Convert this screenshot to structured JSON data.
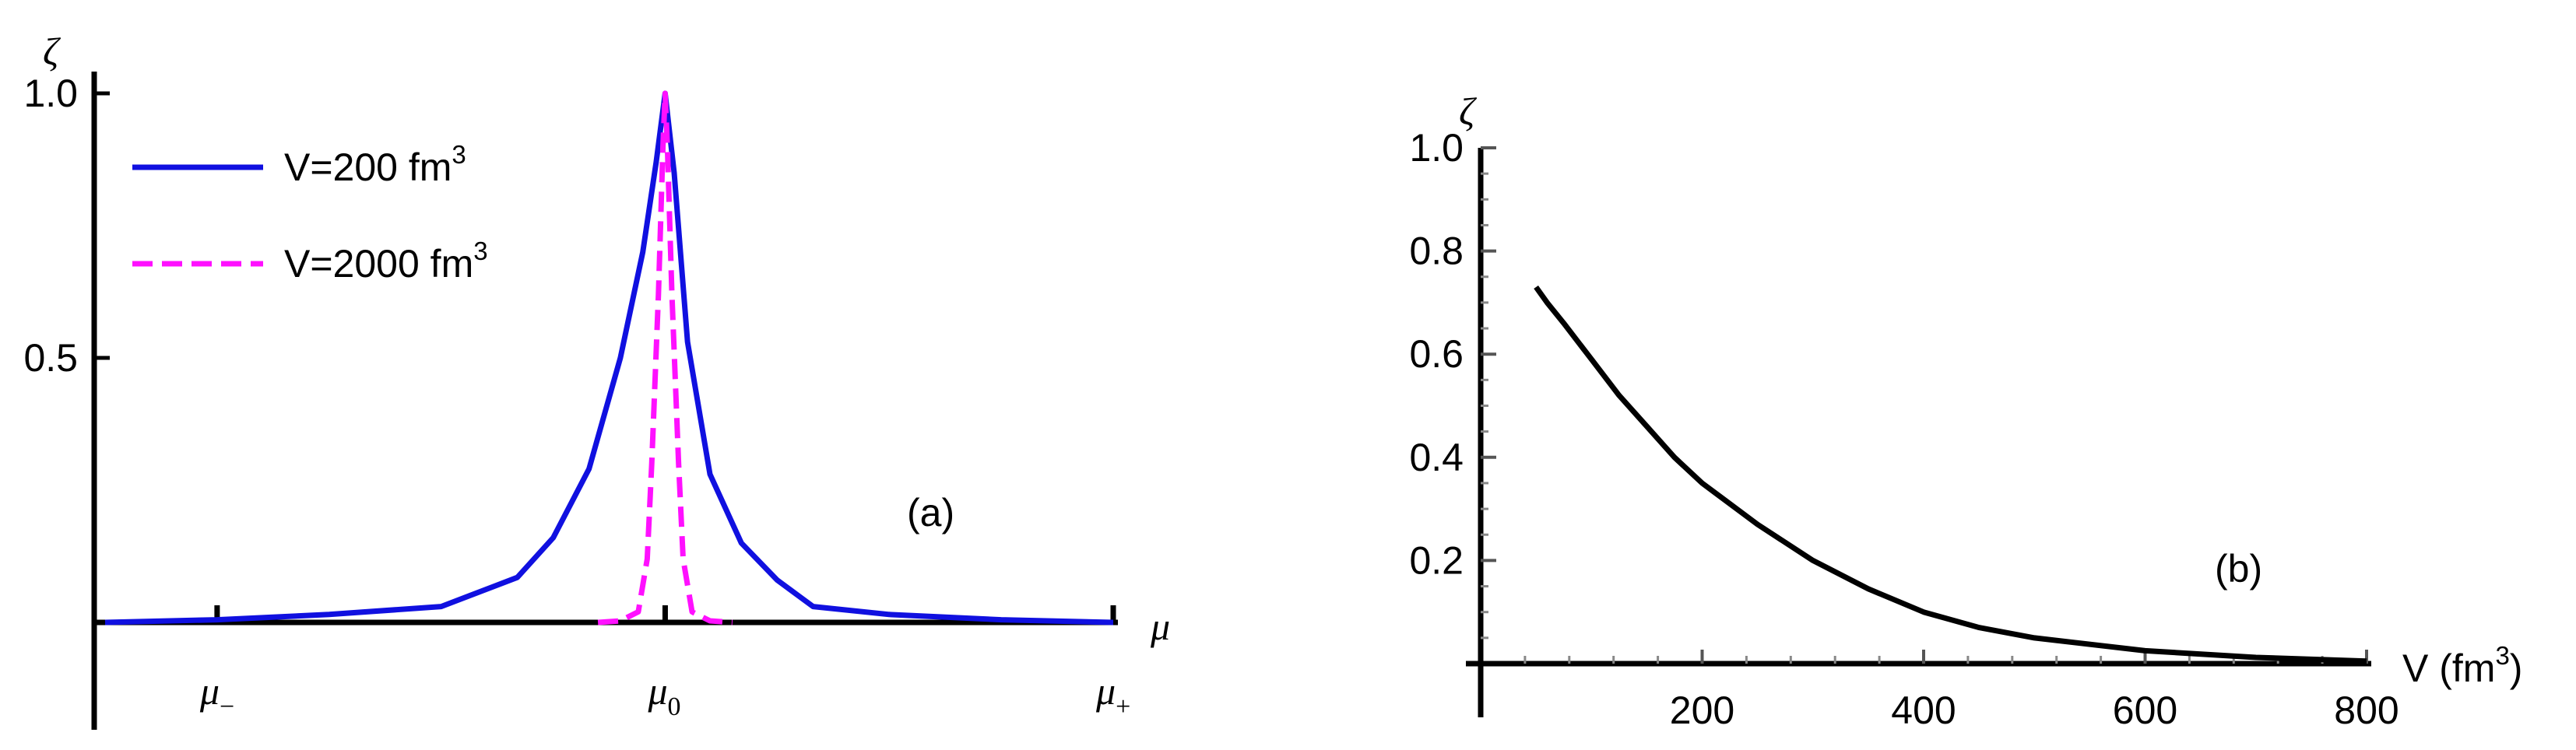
{
  "chart_data": [
    {
      "type": "line",
      "panel_label": "(a)",
      "xlabel": "μ",
      "ylabel": "ζ",
      "x_ticks": [
        {
          "label": "μ",
          "sub": "−",
          "x": -1
        },
        {
          "label": "μ",
          "sub": "0",
          "x": 0
        },
        {
          "label": "μ",
          "sub": "+",
          "x": 1
        }
      ],
      "y_ticks": [
        {
          "label": "0.5",
          "y": 0.5
        },
        {
          "label": "1.0",
          "y": 1.0
        }
      ],
      "xlim": [
        -1.25,
        1.0
      ],
      "ylim": [
        0,
        1.0
      ],
      "legend_position": "top-left",
      "series": [
        {
          "name": "V=200 fm",
          "name_sup": "3",
          "color": "#1010e0",
          "dash": "solid",
          "x": [
            -1.25,
            -1.0,
            -0.75,
            -0.5,
            -0.33,
            -0.25,
            -0.17,
            -0.1,
            -0.05,
            -0.02,
            0.0,
            0.02,
            0.05,
            0.1,
            0.17,
            0.25,
            0.33,
            0.5,
            0.75,
            1.0
          ],
          "y": [
            0.0,
            0.005,
            0.015,
            0.03,
            0.085,
            0.16,
            0.29,
            0.5,
            0.7,
            0.87,
            1.0,
            0.85,
            0.53,
            0.28,
            0.15,
            0.08,
            0.03,
            0.015,
            0.005,
            0.0
          ]
        },
        {
          "name": "V=2000 fm",
          "name_sup": "3",
          "color": "#ff10ff",
          "dash": "dashed",
          "x": [
            -0.15,
            -0.1,
            -0.06,
            -0.04,
            -0.03,
            -0.015,
            -0.005,
            0.0,
            0.005,
            0.015,
            0.03,
            0.04,
            0.06,
            0.1,
            0.15
          ],
          "y": [
            0.0,
            0.003,
            0.02,
            0.12,
            0.3,
            0.62,
            0.9,
            1.0,
            0.9,
            0.62,
            0.3,
            0.12,
            0.02,
            0.003,
            0.0
          ]
        }
      ]
    },
    {
      "type": "line",
      "panel_label": "(b)",
      "xlabel": "V (fm",
      "xlabel_sup": "3",
      "xlabel_close": ")",
      "ylabel": "ζ",
      "x_ticks": [
        {
          "label": "200",
          "x": 200
        },
        {
          "label": "400",
          "x": 400
        },
        {
          "label": "600",
          "x": 600
        },
        {
          "label": "800",
          "x": 800
        }
      ],
      "y_ticks": [
        {
          "label": "0.2",
          "y": 0.2
        },
        {
          "label": "0.4",
          "y": 0.4
        },
        {
          "label": "0.6",
          "y": 0.6
        },
        {
          "label": "0.8",
          "y": 0.8
        },
        {
          "label": "1.0",
          "y": 1.0
        }
      ],
      "xlim": [
        0,
        800
      ],
      "ylim": [
        0,
        1.0
      ],
      "series": [
        {
          "color": "#000000",
          "dash": "solid",
          "x": [
            50,
            60,
            75,
            100,
            125,
            150,
            175,
            200,
            250,
            300,
            350,
            400,
            450,
            500,
            600,
            700,
            800
          ],
          "y": [
            0.73,
            0.7,
            0.66,
            0.59,
            0.52,
            0.46,
            0.4,
            0.35,
            0.27,
            0.2,
            0.145,
            0.1,
            0.07,
            0.05,
            0.025,
            0.012,
            0.005
          ]
        }
      ]
    }
  ]
}
